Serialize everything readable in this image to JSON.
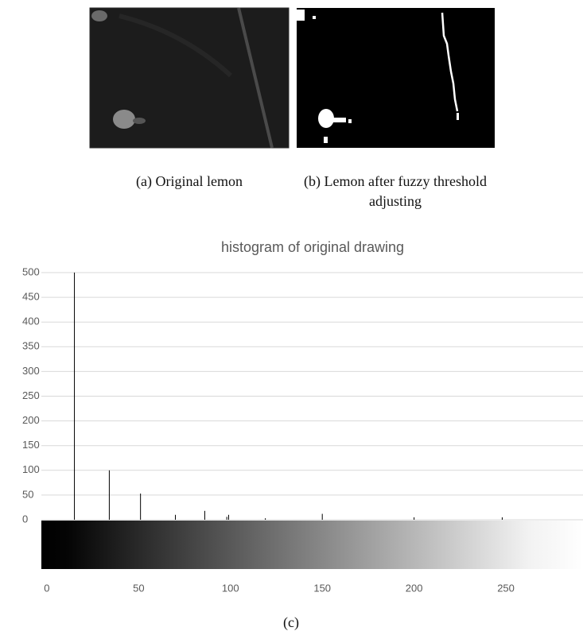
{
  "figures": {
    "a": {
      "caption": "(a) Original lemon"
    },
    "b": {
      "caption": "(b) Lemon after fuzzy threshold adjusting"
    },
    "c": {
      "caption": "(c)"
    }
  },
  "chart_data": {
    "type": "spike",
    "title": "histogram of original drawing",
    "x": [
      15,
      34,
      51,
      70,
      86,
      98,
      99,
      119,
      150,
      200,
      248
    ],
    "values": [
      500,
      100,
      53,
      10,
      18,
      6,
      10,
      3,
      12,
      5,
      5
    ],
    "color": "#000000",
    "xlim": [
      -3,
      292
    ],
    "xticks": [
      0,
      50,
      100,
      150,
      200,
      250
    ],
    "ylim": [
      0,
      500
    ],
    "yticks": [
      0,
      50,
      100,
      150,
      200,
      250,
      300,
      350,
      400,
      450,
      500
    ],
    "grid": true
  }
}
